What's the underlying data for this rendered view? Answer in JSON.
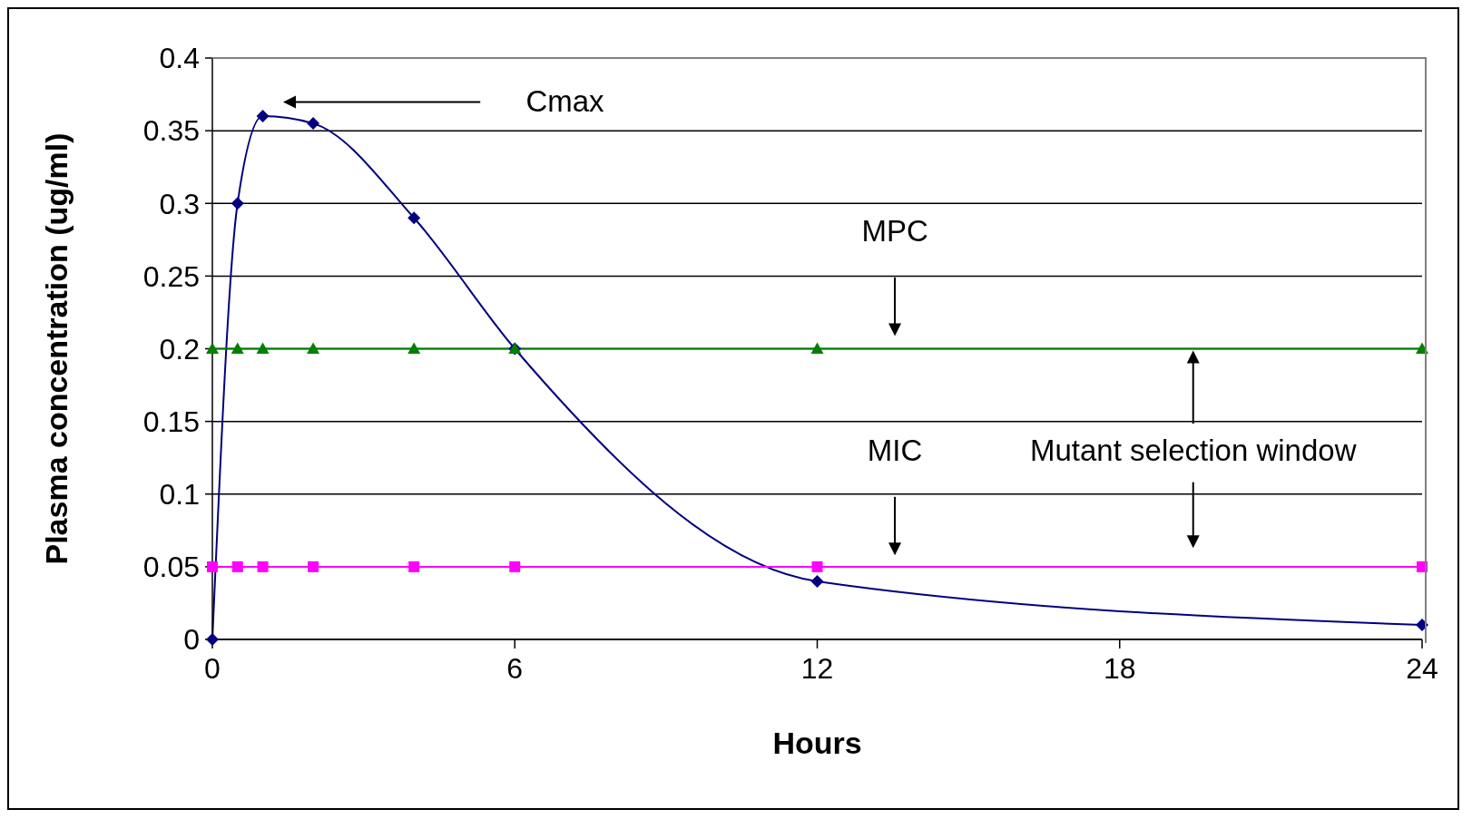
{
  "chart_data": {
    "type": "line",
    "xlabel": "Hours",
    "ylabel": "Plasma concentration (ug/ml)",
    "x": [
      0,
      0.5,
      1,
      2,
      4,
      6,
      12,
      24
    ],
    "series": [
      {
        "color": "#000080",
        "marker": "diamond",
        "values": [
          0,
          0.3,
          0.36,
          0.355,
          0.29,
          0.2,
          0.04,
          0.01
        ]
      },
      {
        "color": "#008000",
        "marker": "triangle",
        "values": [
          0.2,
          0.2,
          0.2,
          0.2,
          0.2,
          0.2,
          0.2,
          0.2
        ]
      },
      {
        "color": "#ff00ff",
        "marker": "square",
        "values": [
          0.05,
          0.05,
          0.05,
          0.05,
          0.05,
          0.05,
          0.05,
          0.05
        ]
      }
    ],
    "xlim": [
      0,
      24
    ],
    "xticks": [
      0,
      6,
      12,
      18,
      24
    ],
    "ylim": [
      0,
      0.4
    ],
    "yticks": [
      0,
      0.05,
      0.1,
      0.15,
      0.2,
      0.25,
      0.3,
      0.35,
      0.4
    ],
    "grid": "y",
    "line_style": "solid",
    "annotations": [
      "Cmax",
      "MPC",
      "MIC",
      "Mutant selection window"
    ]
  }
}
